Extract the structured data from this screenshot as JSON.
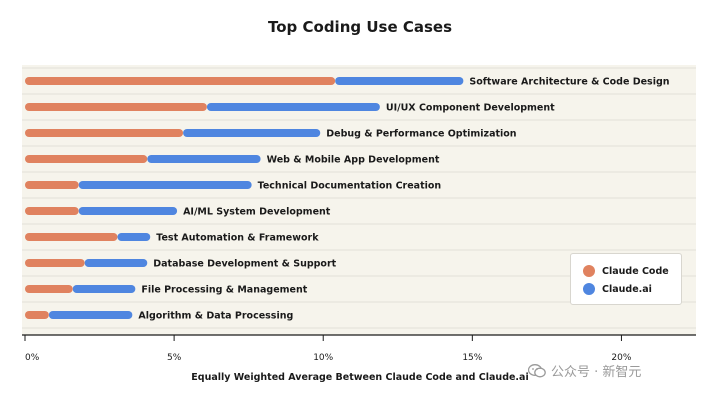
{
  "chart_data": {
    "type": "bar",
    "orientation": "horizontal",
    "stacked": true,
    "title": "Top Coding Use Cases",
    "xlabel": "Equally Weighted Average Between Claude Code and Claude.ai",
    "ylabel": "",
    "xlim": [
      0,
      22.5
    ],
    "xticks": [
      0,
      5,
      10,
      15,
      20
    ],
    "xtick_labels": [
      "0%",
      "5%",
      "10%",
      "15%",
      "20%"
    ],
    "grid": true,
    "legend_position": "bottom-right",
    "categories": [
      "Software Architecture & Code Design",
      "UI/UX Component Development",
      "Debug & Performance Optimization",
      "Web & Mobile App Development",
      "Technical Documentation Creation",
      "AI/ML System Development",
      "Test Automation & Framework",
      "Database Development & Support",
      "File Processing & Management",
      "Algorithm & Data Processing"
    ],
    "series": [
      {
        "name": "Claude Code",
        "color": "#e0825f",
        "values": [
          10.4,
          6.1,
          5.3,
          4.1,
          1.8,
          1.8,
          3.1,
          2.0,
          1.6,
          0.8
        ]
      },
      {
        "name": "Claude.ai",
        "color": "#4f86e0",
        "values": [
          4.3,
          5.8,
          4.6,
          3.8,
          5.8,
          3.3,
          1.1,
          2.1,
          2.1,
          2.8
        ]
      }
    ]
  },
  "watermark": {
    "text": "公众号 · 新智元"
  }
}
